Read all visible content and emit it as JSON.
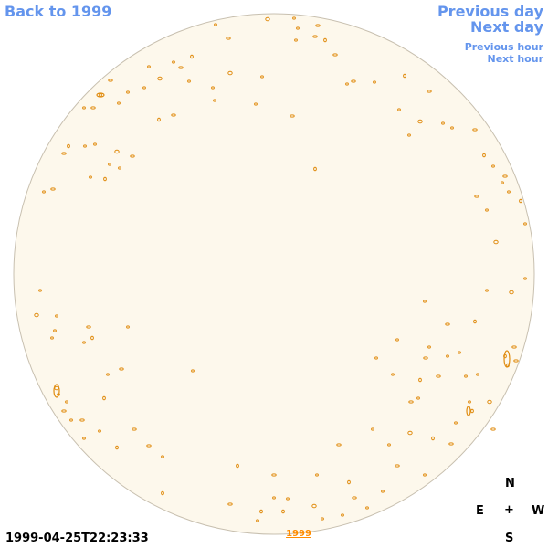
{
  "nav": {
    "back_label": "Back to 1999",
    "previous_day_label": "Previous day",
    "next_day_label": "Next day",
    "previous_hour_label": "Previous hour",
    "next_hour_label": "Next hour"
  },
  "timestamp": "1999-04-25T22:23:33",
  "year_link": "1999",
  "compass": {
    "north": "N",
    "east": "E",
    "center": "+",
    "west": "W",
    "south": "S"
  },
  "colors": {
    "link": "#6495ed",
    "year_link": "#ff8c00",
    "disk_fill": "#fdf8ec",
    "disk_stroke": "#c8c0b0",
    "contour": "#e08c10"
  },
  "icons": {
    "sun_disk": "solar-disk-icon"
  }
}
